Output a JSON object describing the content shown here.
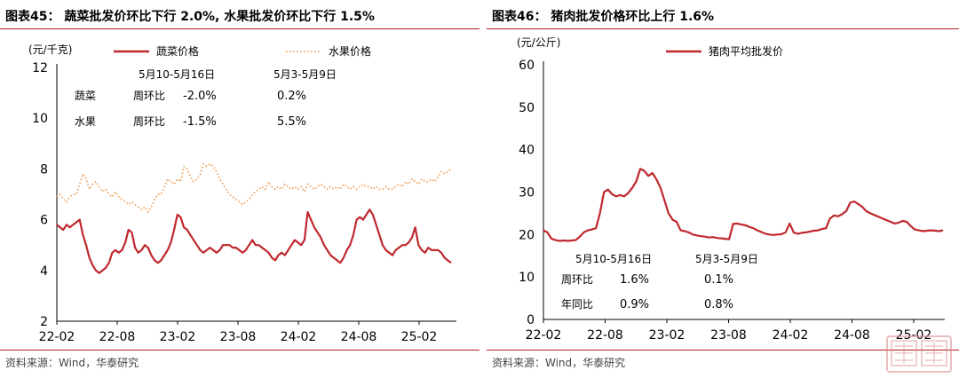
{
  "charts": [
    {
      "title": "图表45：  蔬菜批发价环比下行 2.0%, 水果批发价环比下行 1.5%",
      "source": "资料来源：Wind，华泰研究"
    },
    {
      "title": "图表46：  猪肉批发价格环比上行 1.6%",
      "source": "资料来源：Wind，华泰研究"
    }
  ],
  "colors": {
    "accent": "#b01c1c",
    "vegetable": "#c0282d",
    "fruit": "#eea05a",
    "pork": "#c0282d"
  },
  "chart_data": [
    {
      "type": "line",
      "ylabel": "(元/千克)",
      "ylim": [
        2,
        12
      ],
      "yticks": [
        "2",
        "4",
        "6",
        "8",
        "10",
        "12"
      ],
      "xticks": [
        "22-02",
        "22-08",
        "23-02",
        "23-08",
        "24-02",
        "24-08",
        "25-02"
      ],
      "legend": [
        "蔬菜价格",
        "水果价格"
      ],
      "legend_position": "top",
      "table": {
        "headers": [
          "5月10-5月16日",
          "5月3-5月9日"
        ],
        "rows": [
          {
            "name": "蔬菜",
            "metric": "周环比",
            "current": "-2.0%",
            "previous": "0.2%"
          },
          {
            "name": "水果",
            "metric": "周环比",
            "current": "-1.5%",
            "previous": "5.5%"
          }
        ]
      },
      "series": [
        {
          "name": "蔬菜价格",
          "style": "solid",
          "values": [
            5.8,
            5.7,
            5.6,
            5.8,
            5.7,
            5.8,
            5.9,
            6.0,
            5.4,
            5.0,
            4.5,
            4.2,
            4.0,
            3.9,
            4.0,
            4.1,
            4.3,
            4.7,
            4.8,
            4.7,
            4.8,
            5.1,
            5.6,
            5.5,
            4.9,
            4.7,
            4.8,
            5.0,
            4.9,
            4.6,
            4.4,
            4.3,
            4.4,
            4.6,
            4.8,
            5.1,
            5.6,
            6.2,
            6.1,
            5.7,
            5.6,
            5.4,
            5.2,
            5.0,
            4.8,
            4.7,
            4.8,
            4.9,
            4.8,
            4.7,
            4.8,
            5.0,
            5.0,
            5.0,
            4.9,
            4.9,
            4.8,
            4.7,
            4.8,
            5.0,
            5.2,
            5.0,
            5.0,
            4.9,
            4.8,
            4.7,
            4.5,
            4.4,
            4.6,
            4.7,
            4.6,
            4.8,
            5.0,
            5.2,
            5.1,
            5.0,
            5.2,
            6.3,
            6.0,
            5.7,
            5.5,
            5.3,
            5.0,
            4.8,
            4.6,
            4.5,
            4.4,
            4.3,
            4.5,
            4.8,
            5.0,
            5.4,
            6.0,
            6.1,
            6.0,
            6.2,
            6.4,
            6.2,
            5.8,
            5.4,
            5.0,
            4.8,
            4.7,
            4.6,
            4.8,
            4.9,
            5.0,
            5.0,
            5.1,
            5.3,
            5.7,
            5.0,
            4.8,
            4.7,
            4.9,
            4.8,
            4.8,
            4.8,
            4.7,
            4.5,
            4.4,
            4.3
          ]
        },
        {
          "name": "水果价格",
          "style": "dotted",
          "values": [
            6.9,
            7.0,
            6.8,
            6.7,
            6.9,
            7.0,
            7.0,
            7.4,
            7.8,
            7.6,
            7.2,
            7.4,
            7.5,
            7.3,
            7.1,
            7.2,
            7.0,
            6.9,
            7.1,
            6.9,
            6.8,
            6.7,
            6.6,
            6.7,
            6.6,
            6.5,
            6.4,
            6.5,
            6.3,
            6.5,
            6.8,
            7.0,
            7.0,
            7.3,
            7.6,
            7.5,
            7.4,
            7.6,
            7.5,
            8.1,
            8.0,
            7.7,
            7.5,
            7.6,
            7.8,
            8.2,
            8.1,
            8.2,
            8.1,
            7.9,
            7.6,
            7.4,
            7.2,
            7.0,
            6.9,
            6.8,
            6.7,
            6.6,
            6.7,
            6.8,
            7.0,
            7.1,
            7.2,
            7.3,
            7.2,
            7.5,
            7.3,
            7.2,
            7.3,
            7.2,
            7.4,
            7.3,
            7.2,
            7.3,
            7.2,
            7.3,
            7.1,
            7.4,
            7.3,
            7.2,
            7.3,
            7.4,
            7.3,
            7.2,
            7.3,
            7.2,
            7.3,
            7.2,
            7.4,
            7.3,
            7.2,
            7.3,
            7.2,
            7.3,
            7.4,
            7.3,
            7.3,
            7.2,
            7.3,
            7.2,
            7.2,
            7.3,
            7.2,
            7.2,
            7.3,
            7.4,
            7.3,
            7.5,
            7.4,
            7.6,
            7.5,
            7.4,
            7.6,
            7.5,
            7.5,
            7.6,
            7.5,
            7.7,
            7.9,
            7.8,
            7.9,
            8.0
          ]
        }
      ]
    },
    {
      "type": "line",
      "ylabel": "(元/公斤)",
      "ylim": [
        0,
        60
      ],
      "yticks": [
        "0",
        "10",
        "20",
        "30",
        "40",
        "50",
        "60"
      ],
      "xticks": [
        "22-02",
        "22-08",
        "23-02",
        "23-08",
        "24-02",
        "24-08",
        "25-02"
      ],
      "legend": [
        "猪肉平均批发价"
      ],
      "legend_position": "top",
      "table": {
        "headers": [
          "5月10-5月16日",
          "5月3-5月9日"
        ],
        "rows": [
          {
            "metric": "周环比",
            "current": "1.6%",
            "previous": "0.1%"
          },
          {
            "metric": "年同比",
            "current": "0.9%",
            "previous": "0.8%"
          }
        ]
      },
      "series": [
        {
          "name": "猪肉平均批发价",
          "style": "solid",
          "values": [
            21.0,
            20.5,
            19.0,
            18.7,
            18.5,
            18.6,
            18.5,
            18.6,
            18.7,
            19.5,
            20.5,
            21.0,
            21.2,
            21.5,
            25.0,
            30.0,
            30.6,
            29.5,
            29.0,
            29.3,
            29.0,
            29.8,
            31.0,
            32.5,
            35.5,
            35.0,
            33.8,
            34.5,
            33.0,
            31.0,
            28.0,
            25.0,
            23.5,
            23.0,
            21.0,
            20.8,
            20.5,
            20.0,
            19.8,
            19.6,
            19.5,
            19.3,
            19.4,
            19.2,
            19.1,
            19.0,
            18.9,
            22.5,
            22.6,
            22.4,
            22.2,
            21.8,
            21.5,
            21.0,
            20.6,
            20.2,
            20.0,
            19.9,
            20.0,
            20.1,
            20.5,
            22.6,
            20.5,
            20.2,
            20.4,
            20.5,
            20.7,
            20.9,
            21.0,
            21.3,
            21.5,
            23.8,
            24.5,
            24.3,
            24.8,
            25.5,
            27.5,
            27.8,
            27.2,
            26.5,
            25.5,
            25.0,
            24.6,
            24.2,
            23.8,
            23.4,
            23.0,
            22.6,
            22.8,
            23.2,
            23.0,
            22.0,
            21.2,
            21.0,
            20.8,
            20.9,
            21.0,
            20.9,
            20.8,
            21.0
          ]
        }
      ]
    }
  ]
}
